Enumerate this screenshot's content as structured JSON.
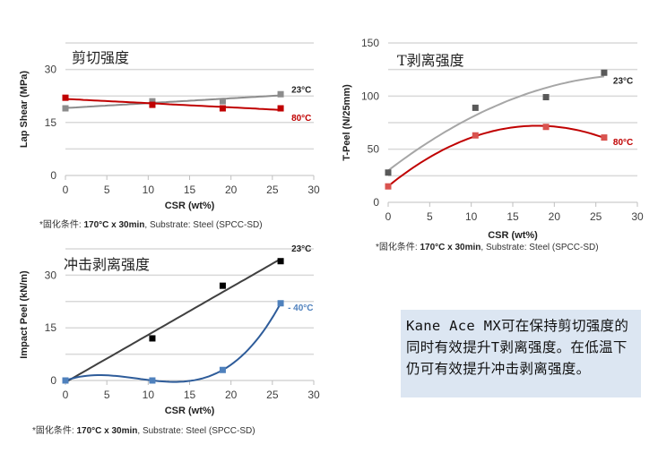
{
  "chart_data": [
    {
      "type": "scatter",
      "title": "剪切强度",
      "xlabel": "CSR (wt%)",
      "ylabel": "Lap Shear (MPa)",
      "xlim": [
        0,
        30
      ],
      "ylim": [
        0,
        37.5
      ],
      "xticks": [
        "0",
        "5",
        "10",
        "15",
        "20",
        "25",
        "30"
      ],
      "yticks": [
        {
          "v": 0,
          "label": "0"
        },
        {
          "v": 15,
          "label": "15"
        },
        {
          "v": 30,
          "label": "30"
        }
      ],
      "grid_step": 7.5,
      "series": [
        {
          "name": "23°C",
          "color": "#8c8c8c",
          "marker_color": "#8c8c8c",
          "label_color": "#222222",
          "trend": 1,
          "x": [
            0,
            10.5,
            19,
            26
          ],
          "y": [
            19,
            21,
            21,
            23
          ]
        },
        {
          "name": "80°C",
          "color": "#c00000",
          "marker_color": "#c00000",
          "label_color": "#c00000",
          "trend": 1,
          "x": [
            0,
            10.5,
            19,
            26
          ],
          "y": [
            22,
            20,
            19,
            19
          ]
        }
      ],
      "footnote": {
        "prefix": "*固化条件: ",
        "bold": "170°C x 30min",
        "suffix": ", Substrate: Steel (SPCC-SD)"
      }
    },
    {
      "type": "scatter",
      "title": "T剥离强度",
      "xlabel": "CSR (wt%)",
      "ylabel": "T-Peel (N/25mm)",
      "xlim": [
        0,
        30
      ],
      "ylim": [
        0,
        150
      ],
      "xticks": [
        "0",
        "5",
        "10",
        "15",
        "20",
        "25",
        "30"
      ],
      "yticks": [
        {
          "v": 0,
          "label": "0"
        },
        {
          "v": 50,
          "label": "50"
        },
        {
          "v": 100,
          "label": "100"
        },
        {
          "v": 150,
          "label": "150"
        }
      ],
      "grid_step": 25,
      "series": [
        {
          "name": "23°C",
          "color": "#a6a6a6",
          "marker_color": "#595959",
          "label_color": "#222222",
          "trend": 2,
          "x": [
            0,
            10.5,
            19,
            26
          ],
          "y": [
            28,
            89,
            99,
            122
          ]
        },
        {
          "name": "80°C",
          "color": "#c00000",
          "marker_color": "#d9534f",
          "label_color": "#c00000",
          "trend": 2,
          "x": [
            0,
            10.5,
            19,
            26
          ],
          "y": [
            15,
            63,
            71,
            61
          ]
        }
      ],
      "footnote": {
        "prefix": "*固化条件: ",
        "bold": "170°C x 30min",
        "suffix": ", Substrate: Steel (SPCC-SD)"
      }
    },
    {
      "type": "scatter",
      "title": "冲击剥离强度",
      "xlabel": "CSR (wt%)",
      "ylabel": "Impact Peel (kN/m)",
      "xlim": [
        0,
        30
      ],
      "ylim": [
        0,
        37.5
      ],
      "xticks": [
        "0",
        "5",
        "10",
        "15",
        "20",
        "25",
        "30"
      ],
      "yticks": [
        {
          "v": 0,
          "label": "0"
        },
        {
          "v": 15,
          "label": "15"
        },
        {
          "v": 30,
          "label": "30"
        }
      ],
      "grid_step": 7.5,
      "series": [
        {
          "name": "23°C",
          "color": "#404040",
          "marker_color": "#000000",
          "label_color": "#222222",
          "trend": 1,
          "x": [
            0,
            10.5,
            19,
            26
          ],
          "y": [
            0,
            12,
            27,
            34
          ]
        },
        {
          "name": "- 40°C",
          "color": "#2e5c9a",
          "marker_color": "#4f81bd",
          "label_color": "#4f81bd",
          "trend": 3,
          "x": [
            0,
            10.5,
            19,
            26
          ],
          "y": [
            0,
            0,
            3,
            22
          ]
        }
      ],
      "footnote": {
        "prefix": "*固化条件: ",
        "bold": "170°C x 30min",
        "suffix": ", Substrate: Steel (SPCC-SD)"
      }
    }
  ],
  "note": {
    "text": "Kane Ace MX可在保持剪切强度的同时有效提升T剥离强度。在低温下仍可有效提升冲击剥离强度。",
    "background": "#dce6f2"
  }
}
